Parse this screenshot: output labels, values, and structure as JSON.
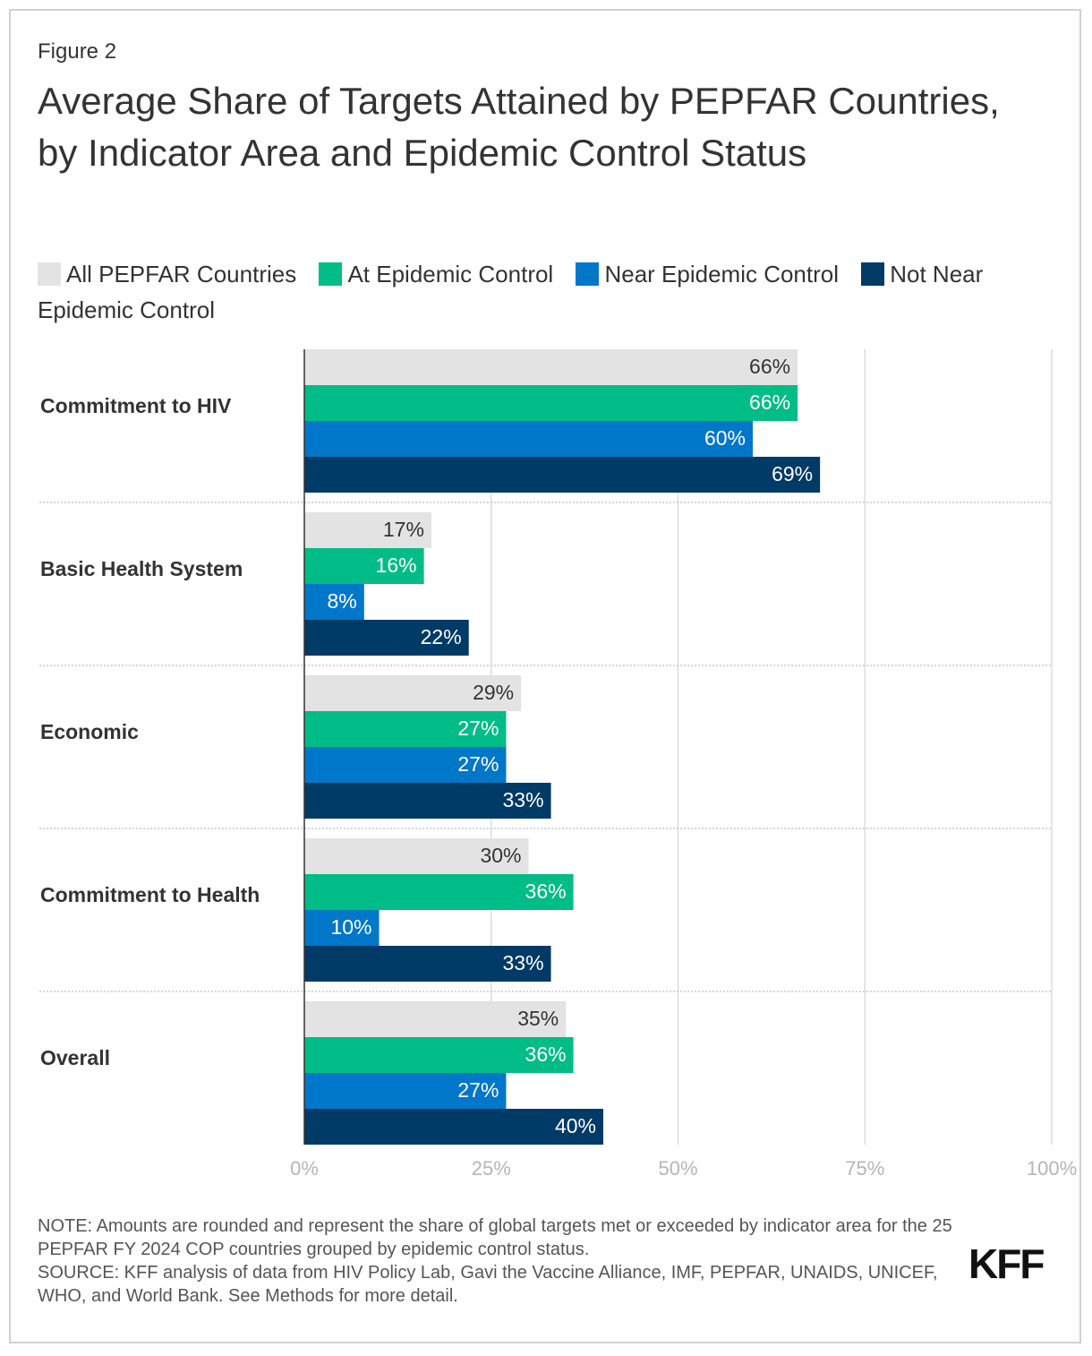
{
  "chart_data": {
    "type": "hbar",
    "figure_label": "Figure 2",
    "title": "Average Share of Targets Attained by PEPFAR Countries, by Indicator Area and Epidemic Control Status",
    "categories": [
      "Commitment to HIV",
      "Basic Health System",
      "Economic",
      "Commitment to Health",
      "Overall"
    ],
    "series": [
      {
        "name": "All PEPFAR Countries",
        "color": "#e3e3e3",
        "values": [
          66,
          17,
          29,
          30,
          35
        ],
        "value_labels": [
          "66%",
          "17%",
          "29%",
          "30%",
          "35%"
        ]
      },
      {
        "name": "At Epidemic Control",
        "color": "#00bc86",
        "values": [
          66,
          16,
          27,
          36,
          36
        ],
        "value_labels": [
          "66%",
          "16%",
          "27%",
          "36%",
          "36%"
        ]
      },
      {
        "name": "Near Epidemic Control",
        "color": "#0077c8",
        "values": [
          60,
          8,
          27,
          10,
          27
        ],
        "value_labels": [
          "60%",
          "8%",
          "27%",
          "10%",
          "27%"
        ]
      },
      {
        "name": "Not Near Epidemic Control",
        "color": "#003a66",
        "values": [
          69,
          22,
          33,
          33,
          40
        ],
        "value_labels": [
          "69%",
          "22%",
          "33%",
          "33%",
          "40%"
        ]
      }
    ],
    "xlim": [
      0,
      100
    ],
    "xticks": [
      {
        "value": 0,
        "label": "0%"
      },
      {
        "value": 25,
        "label": "25%"
      },
      {
        "value": 50,
        "label": "50%"
      },
      {
        "value": 75,
        "label": "75%"
      },
      {
        "value": 100,
        "label": "100%"
      }
    ],
    "grid": true,
    "notes": [
      "NOTE: Amounts are rounded and represent the share of global targets met or exceeded by indicator area for the 25 PEPFAR FY 2024 COP countries grouped by epidemic control status.",
      "SOURCE: KFF analysis of data from HIV Policy Lab, Gavi the Vaccine Alliance, IMF, PEPFAR, UNAIDS, UNICEF, WHO, and World Bank. See Methods for more detail."
    ],
    "logo": "KFF"
  }
}
